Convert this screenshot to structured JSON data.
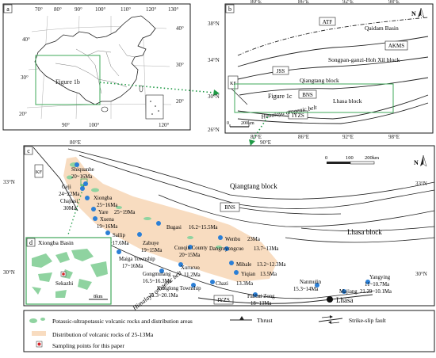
{
  "panel_a": {
    "letter": "a",
    "lon_ticks": [
      "70°",
      "80°",
      "90°",
      "100°",
      "110°",
      "120°",
      "130°"
    ],
    "lon_bottom": [
      "90°",
      "100°",
      "120°"
    ],
    "lat_ticks": [
      "40°",
      "30°",
      "20°"
    ],
    "lat_right": [
      "40°",
      "30°",
      "20°"
    ],
    "box_label": "Figure 1b"
  },
  "panel_b": {
    "letter": "b",
    "lon_ticks": [
      "80°E",
      "86°E",
      "92°E",
      "98°E"
    ],
    "lat_ticks": [
      "38°N",
      "34°N",
      "30°N",
      "26°N"
    ],
    "labels": {
      "atf": "ATF",
      "qaidam": "Qaidam Basin",
      "akms": "AKMS",
      "jss": "JSS",
      "songpan": "Songpan-ganzi-Hoh Xil block",
      "qiangtang": "Qiangtang block",
      "bns": "BNS",
      "lhasa": "Lhasa block",
      "iyzs": "IYZS",
      "himalaya": "Himalaya orogenic belt",
      "box": "Figure 1c",
      "kf": "KF"
    },
    "scale_zero": "0",
    "scale_label": "200km",
    "north": "N"
  },
  "panel_c": {
    "letter": "c",
    "lon_ticks": [
      "80°E",
      "90°E"
    ],
    "lat_ticks": [
      "33°N",
      "30°N"
    ],
    "lat_right": [
      "33°N",
      "30°N"
    ],
    "block_labels": {
      "qiangtang": "Qiangtang block",
      "lhasa": "Lhasa block",
      "bns": "BNS",
      "iyzs": "IYZS",
      "kf": "KF",
      "himalaya": "Himalaya orogenic belt",
      "lhasa_city": "Lhasa"
    },
    "scale": {
      "zero": "0",
      "mid": "100",
      "end": "200km"
    },
    "north": "N"
  },
  "sites": [
    {
      "name": "Shiquanhe",
      "age": "20~16Ma"
    },
    {
      "name": "Geji",
      "age": "24~22Ma"
    },
    {
      "name": "Chajiasi",
      "age": "30Ma"
    },
    {
      "name": "Xiongba",
      "age": "25~16Ma"
    },
    {
      "name": "Yare",
      "age": "25~19Ma"
    },
    {
      "name": "Xuena",
      "age": "19~16Ma"
    },
    {
      "name": "Sailip",
      "age": "18.5~17.6Ma"
    },
    {
      "name": "Bugasi",
      "age": "16.2~15.5Ma"
    },
    {
      "name": "Zabuye",
      "age": "19~15Ma"
    },
    {
      "name": "Wenbu",
      "age": "23Ma"
    },
    {
      "name": "Cuoqin County",
      "age": "20~15Ma"
    },
    {
      "name": "Dangreyongcuo",
      "age": "13.7~13Ma"
    },
    {
      "name": "Maiga Township",
      "age": "17~16Ma"
    },
    {
      "name": "Mibale",
      "age": "13.2~12.3Ma"
    },
    {
      "name": "Xurucuo",
      "age": "11.2Ma"
    },
    {
      "name": "Gongmutang",
      "age": "16.5~16.3Ma"
    },
    {
      "name": "Yiqian",
      "age": "13.5Ma"
    },
    {
      "name": "Chazi",
      "age": "13.3Ma"
    },
    {
      "name": "Konglong Township",
      "age": "21.3~20.1Ma"
    },
    {
      "name": "Pabbai Zong",
      "age": "18~13Ma"
    },
    {
      "name": "Nanmulin",
      "age": "15.3~14Ma"
    },
    {
      "name": "Yangying",
      "age": "11~10.7Ma"
    },
    {
      "name": "Majiang",
      "age": "21.29~10.1Ma"
    }
  ],
  "panel_d": {
    "letter": "d",
    "title": "Xiongba Basin",
    "site": "Sekazhi",
    "scale": "8km"
  },
  "legend": {
    "potassic": "Potassic-ultrapotassic volcanic rocks and distribution areas",
    "distribution": "Distribution of volcanic rocks of 25-13Ma",
    "sampling": "Sampling points for this paper",
    "thrust": "Thrust",
    "strike_slip": "Strike-slip fault"
  },
  "colors": {
    "frame": "#1a1a1a",
    "inset_box": "#3fa85a",
    "dotted_arrow": "#1f9a45",
    "site_dot": "#2b7fd6",
    "volcanic_fill": "#f8dcc0",
    "potassic_fill": "#8fd3a0",
    "sampling_star": "#d7262b"
  }
}
